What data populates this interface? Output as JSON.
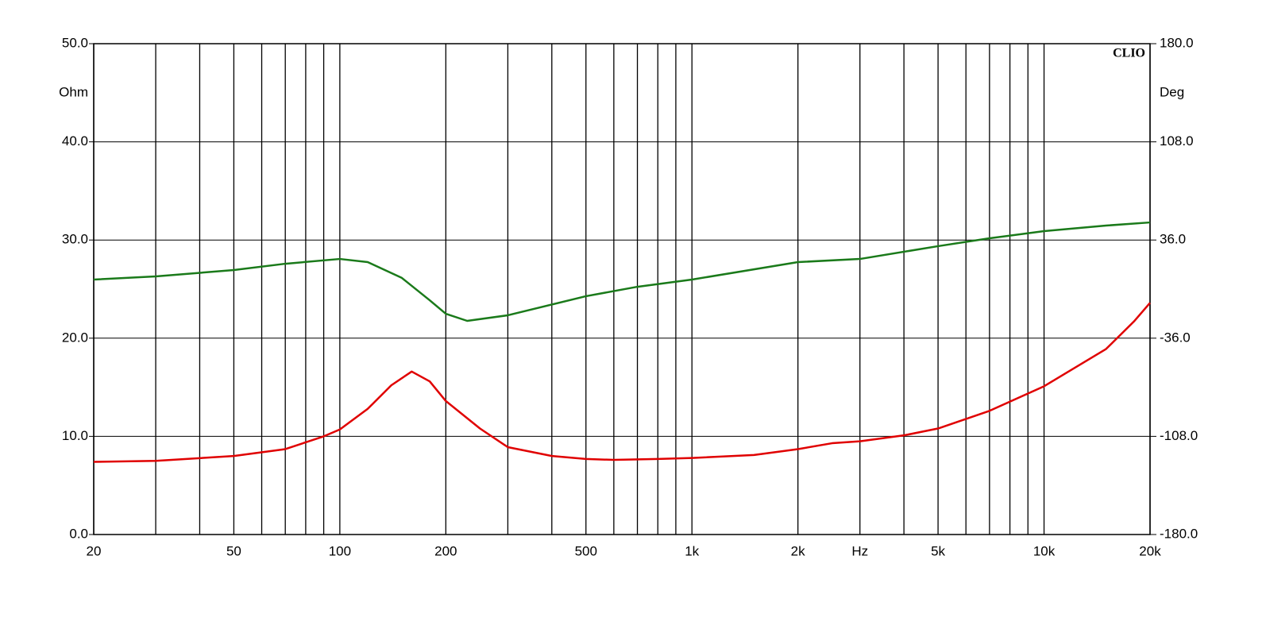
{
  "chart_data": {
    "type": "line",
    "brand": "CLIO",
    "ylabel": "Ohm",
    "y2label": "Deg",
    "xlog": true,
    "xlim": [
      20,
      20000
    ],
    "xticks": [
      20,
      50,
      100,
      200,
      500,
      {
        "value": 1000,
        "label": "1k"
      },
      {
        "value": 2000,
        "label": "2k"
      },
      {
        "value": 3000,
        "label": "Hz"
      },
      {
        "value": 5000,
        "label": "5k"
      },
      {
        "value": 10000,
        "label": "10k"
      },
      {
        "value": 20000,
        "label": "20k"
      }
    ],
    "xminor": [
      30,
      40,
      60,
      70,
      80,
      90,
      300,
      400,
      600,
      700,
      800,
      900,
      4000,
      6000,
      7000,
      8000,
      9000
    ],
    "ylim": [
      0,
      50
    ],
    "yticks": [
      {
        "value": 0,
        "label": "0.0"
      },
      {
        "value": 10,
        "label": "10.0"
      },
      {
        "value": 20,
        "label": "20.0"
      },
      {
        "value": 30,
        "label": "30.0"
      },
      {
        "value": 40,
        "label": "40.0"
      },
      {
        "value": 50,
        "label": "50.0"
      }
    ],
    "y2lim": [
      -180,
      180
    ],
    "y2ticks": [
      {
        "value": -180,
        "label": "-180.0"
      },
      {
        "value": -108,
        "label": "-108.0"
      },
      {
        "value": -36,
        "label": "-36.0"
      },
      {
        "value": 36,
        "label": "36.0"
      },
      {
        "value": 108,
        "label": "108.0"
      },
      {
        "value": 180,
        "label": "180.0"
      }
    ],
    "grid": true,
    "series": [
      {
        "color": "#e00000",
        "axis": "y",
        "x": [
          20,
          30,
          50,
          70,
          90,
          100,
          120,
          140,
          160,
          180,
          200,
          250,
          300,
          400,
          500,
          600,
          800,
          1000,
          1500,
          2000,
          2500,
          3000,
          4000,
          5000,
          7000,
          10000,
          15000,
          18000,
          20000
        ],
        "values": [
          7.4,
          7.5,
          8.0,
          8.7,
          10.0,
          10.7,
          12.8,
          15.2,
          16.6,
          15.6,
          13.6,
          10.8,
          8.9,
          8.0,
          7.7,
          7.6,
          7.7,
          7.8,
          8.1,
          8.7,
          9.3,
          9.5,
          10.1,
          10.8,
          12.6,
          15.1,
          18.9,
          21.7,
          23.6
        ]
      },
      {
        "color": "#1a7a1a",
        "axis": "y2",
        "x": [
          20,
          30,
          50,
          70,
          100,
          120,
          150,
          180,
          200,
          230,
          300,
          500,
          700,
          1000,
          2000,
          3000,
          5000,
          7000,
          10000,
          15000,
          20000
        ],
        "values": [
          7.0,
          9.3,
          14.0,
          18.6,
          22.1,
          19.8,
          8.2,
          -8.2,
          -18.1,
          -23.3,
          -19.2,
          -5.2,
          1.7,
          7.0,
          19.8,
          22.1,
          31.5,
          37.3,
          42.5,
          46.6,
          48.9
        ]
      }
    ]
  }
}
